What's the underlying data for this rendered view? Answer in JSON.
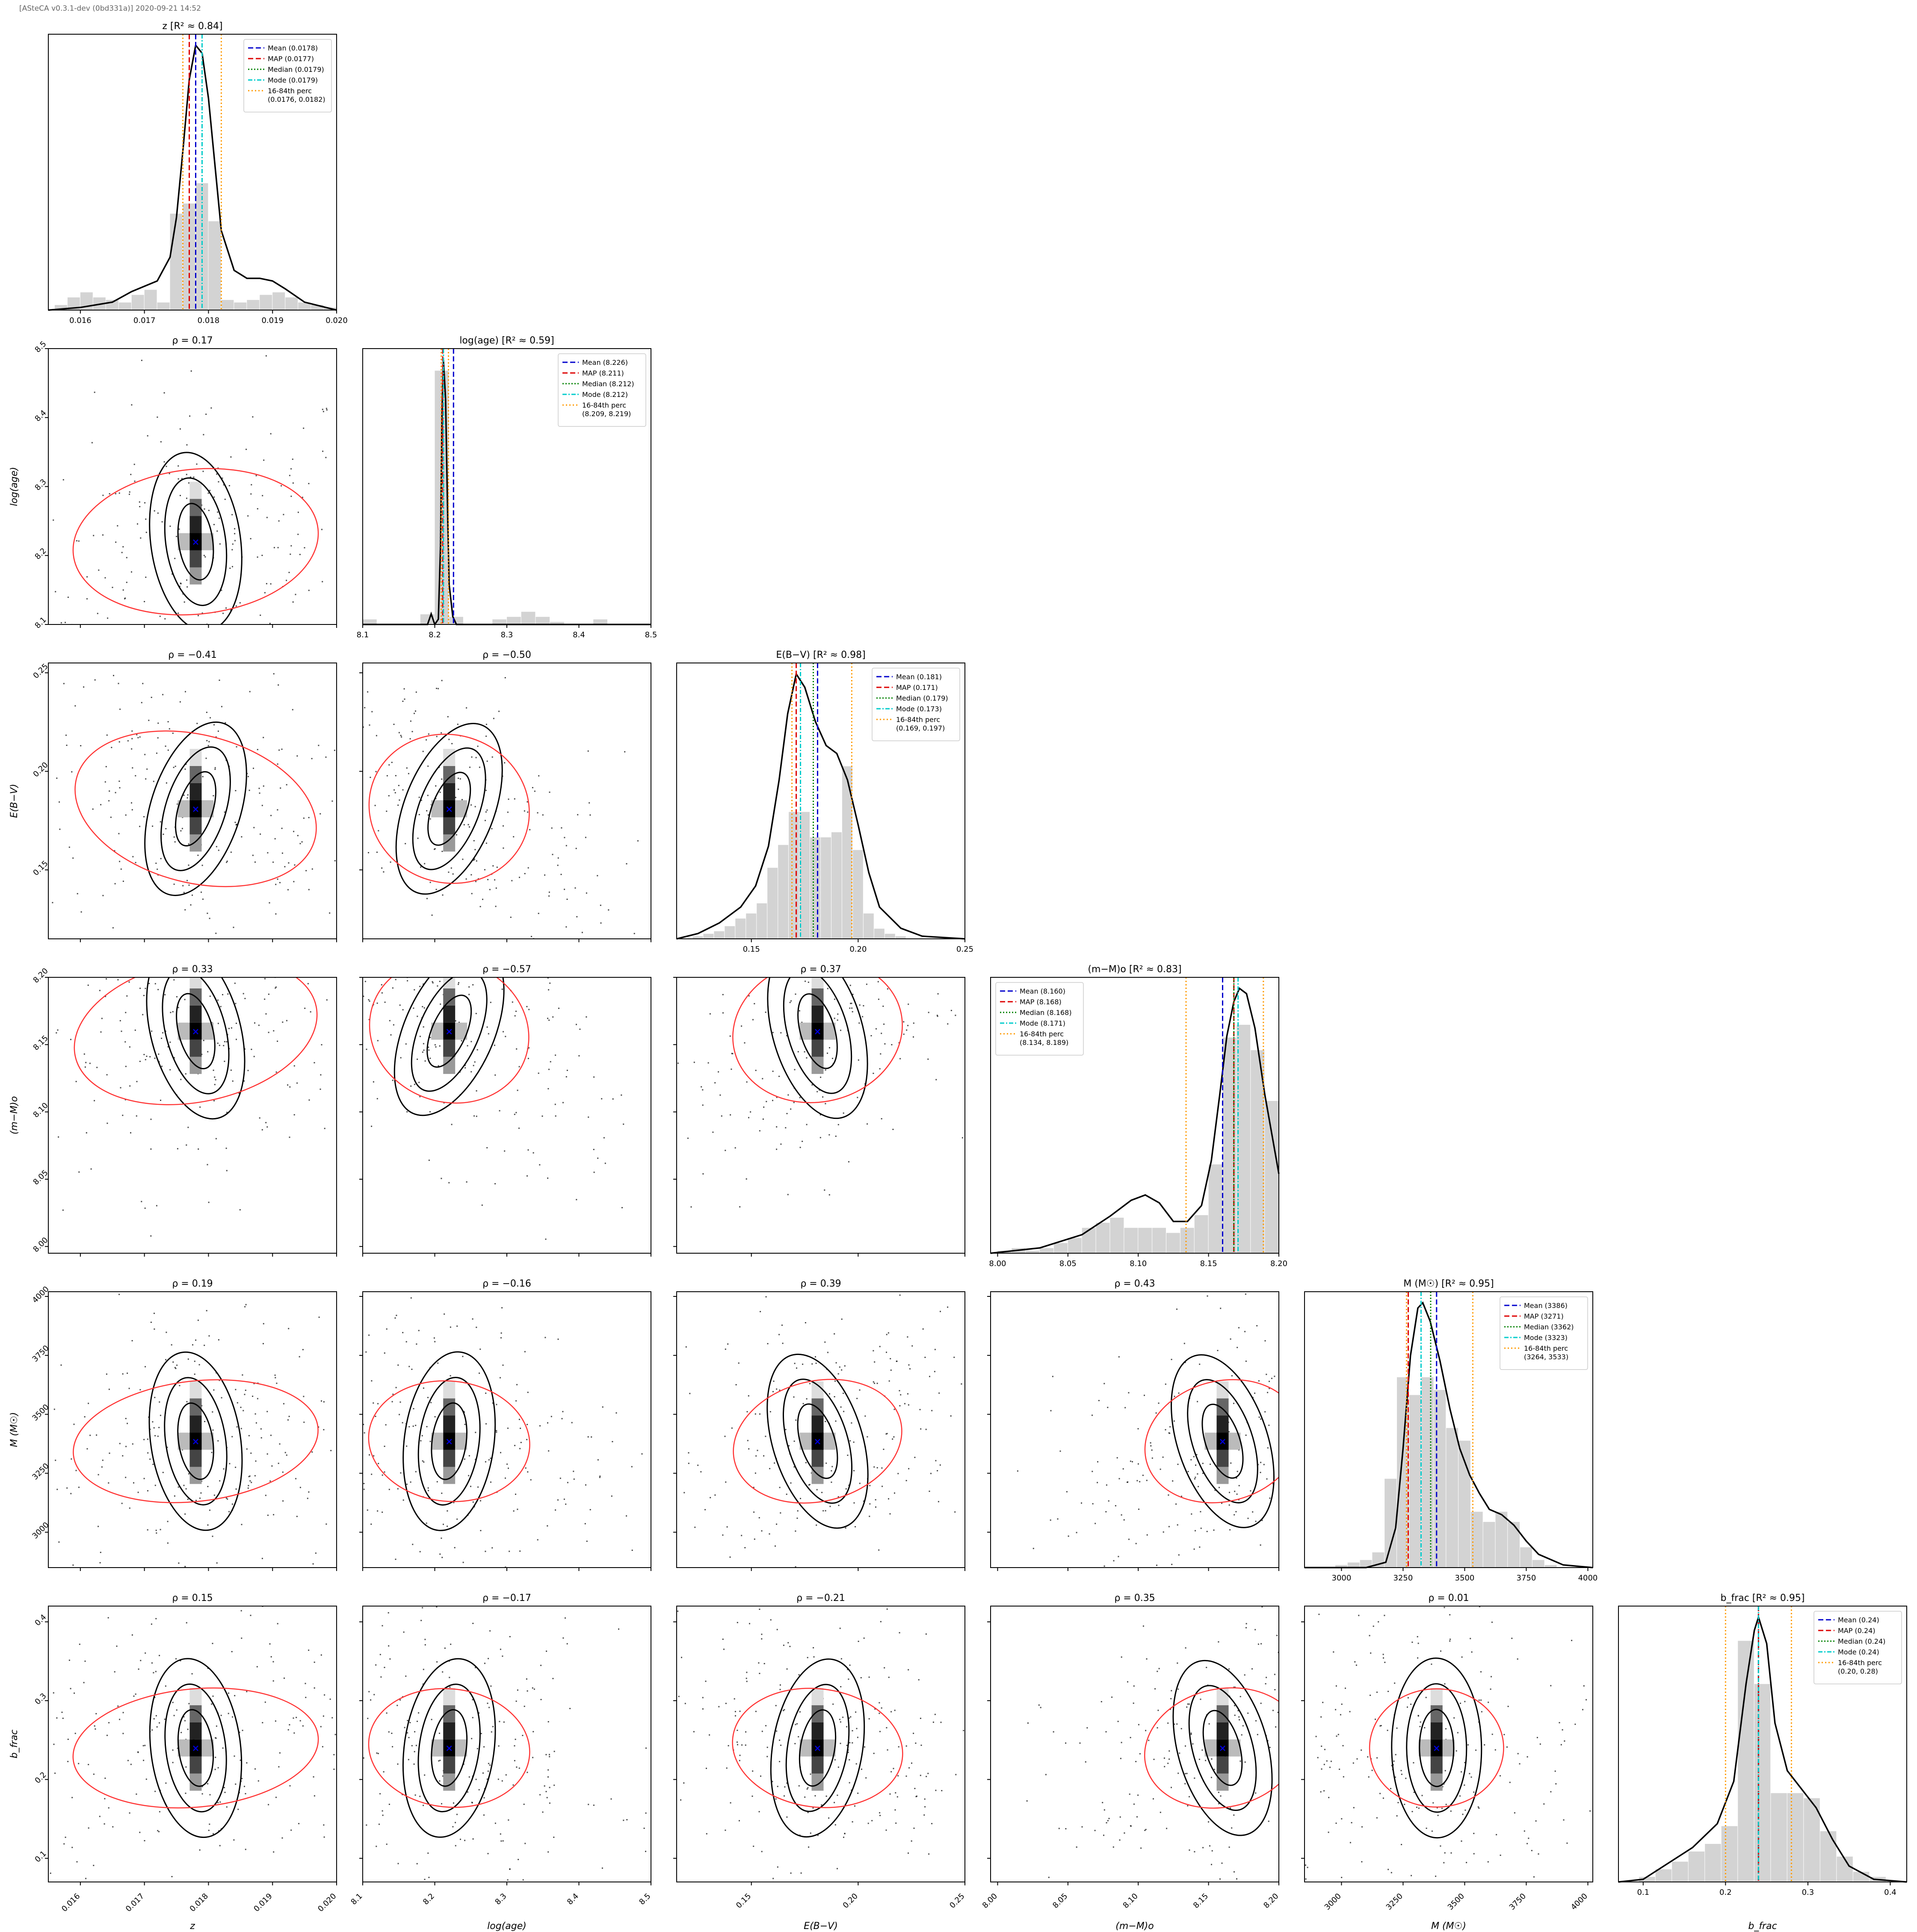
{
  "header": {
    "version_stamp": "[ASteCA v0.3.1-dev (0bd331a)] 2020-09-21 14:52"
  },
  "colors": {
    "mean": "#0000cc",
    "map": "#dd0000",
    "median": "#008000",
    "mode": "#00cccc",
    "perc": "#ff9900",
    "hist": "#d3d3d3",
    "kde": "#000000",
    "ellipse": "#ff3333",
    "scatter": "#111111",
    "marker": "#0000dd"
  },
  "chart_data": {
    "type": "corner",
    "params": [
      {
        "key": "z",
        "label": "z",
        "title": "z [R² ≈ 0.84]",
        "lim": [
          0.0155,
          0.02
        ],
        "ticks": [
          0.016,
          0.017,
          0.018,
          0.019,
          0.02
        ],
        "tick_labels": [
          "0.016",
          "0.017",
          "0.018",
          "0.019",
          "0.020"
        ],
        "best": 0.0178,
        "sigma": 0.0012,
        "hist_centers": [
          0.0157,
          0.0159,
          0.0161,
          0.0163,
          0.0165,
          0.0167,
          0.0169,
          0.0171,
          0.0173,
          0.0175,
          0.0177,
          0.0179,
          0.0181,
          0.0183,
          0.0185,
          0.0187,
          0.0189,
          0.0191,
          0.0193,
          0.0195,
          0.0197,
          0.0199
        ],
        "hist_heights": [
          0.02,
          0.05,
          0.07,
          0.05,
          0.04,
          0.03,
          0.06,
          0.08,
          0.03,
          0.38,
          0.42,
          0.5,
          0.35,
          0.04,
          0.03,
          0.04,
          0.06,
          0.07,
          0.05,
          0.03,
          0.02,
          0.01
        ],
        "kde_x": [
          0.0155,
          0.016,
          0.0165,
          0.0168,
          0.017,
          0.0172,
          0.0174,
          0.0175,
          0.0176,
          0.0177,
          0.0178,
          0.0179,
          0.018,
          0.0181,
          0.0182,
          0.0184,
          0.0186,
          0.0188,
          0.019,
          0.0192,
          0.0195,
          0.02
        ],
        "kde_y": [
          0.0,
          0.01,
          0.03,
          0.07,
          0.09,
          0.11,
          0.2,
          0.35,
          0.6,
          0.87,
          1.0,
          0.97,
          0.8,
          0.55,
          0.3,
          0.15,
          0.12,
          0.12,
          0.11,
          0.08,
          0.03,
          0.0
        ],
        "legend": {
          "position": "upper-right",
          "entries": [
            "Mean (0.0178)",
            "MAP (0.0177)",
            "Median (0.0179)",
            "Mode (0.0179)",
            "16-84th perc",
            "(0.0176, 0.0182)"
          ]
        },
        "lines": {
          "mean": 0.0178,
          "map": 0.0177,
          "median": 0.0179,
          "mode": 0.0179,
          "p16": 0.0176,
          "p84": 0.0182
        }
      },
      {
        "key": "logage",
        "label": "log(age)",
        "title": "log(age) [R² ≈ 0.59]",
        "lim": [
          8.1,
          8.5
        ],
        "ticks": [
          8.1,
          8.2,
          8.3,
          8.4,
          8.5
        ],
        "tick_labels": [
          "8.1",
          "8.2",
          "8.3",
          "8.4",
          "8.5"
        ],
        "best": 8.22,
        "sigma": 0.07,
        "hist_centers": [
          8.11,
          8.13,
          8.15,
          8.17,
          8.19,
          8.21,
          8.23,
          8.25,
          8.27,
          8.29,
          8.31,
          8.33,
          8.35,
          8.37,
          8.39,
          8.41,
          8.43,
          8.45,
          8.47,
          8.49
        ],
        "hist_heights": [
          0.02,
          0.0,
          0.0,
          0.0,
          0.04,
          1.0,
          0.03,
          0.0,
          0.0,
          0.02,
          0.03,
          0.05,
          0.03,
          0.01,
          0.0,
          0.0,
          0.02,
          0.0,
          0.0,
          0.0
        ],
        "kde_x": [
          8.1,
          8.19,
          8.195,
          8.2,
          8.205,
          8.208,
          8.21,
          8.212,
          8.215,
          8.218,
          8.22,
          8.225,
          8.23,
          8.5
        ],
        "kde_y": [
          0.0,
          0.0,
          0.04,
          0.0,
          0.02,
          0.3,
          0.8,
          1.0,
          0.85,
          0.4,
          0.15,
          0.03,
          0.0,
          0.0
        ],
        "legend": {
          "position": "upper-right",
          "entries": [
            "Mean (8.226)",
            "MAP (8.211)",
            "Median (8.212)",
            "Mode (8.212)",
            "16-84th perc",
            "(8.209, 8.219)"
          ]
        },
        "lines": {
          "mean": 8.226,
          "map": 8.211,
          "median": 8.212,
          "mode": 8.212,
          "p16": 8.209,
          "p84": 8.219
        }
      },
      {
        "key": "ebv",
        "label": "E(B−V)",
        "title": "E(B−V) [R² ≈ 0.98]",
        "lim": [
          0.115,
          0.25
        ],
        "ticks": [
          0.15,
          0.2,
          0.25
        ],
        "tick_labels": [
          "0.15",
          "0.20",
          "0.25"
        ],
        "best": 0.181,
        "sigma": 0.025,
        "hist_centers": [
          0.12,
          0.125,
          0.13,
          0.135,
          0.14,
          0.145,
          0.15,
          0.155,
          0.16,
          0.165,
          0.17,
          0.175,
          0.18,
          0.185,
          0.19,
          0.195,
          0.2,
          0.205,
          0.21,
          0.215,
          0.22
        ],
        "hist_heights": [
          0.0,
          0.01,
          0.02,
          0.03,
          0.05,
          0.08,
          0.1,
          0.14,
          0.28,
          0.37,
          0.5,
          0.5,
          0.4,
          0.4,
          0.42,
          0.68,
          0.35,
          0.1,
          0.04,
          0.02,
          0.01
        ],
        "kde_x": [
          0.115,
          0.125,
          0.135,
          0.145,
          0.152,
          0.158,
          0.163,
          0.167,
          0.171,
          0.175,
          0.18,
          0.185,
          0.19,
          0.195,
          0.2,
          0.205,
          0.21,
          0.22,
          0.23,
          0.25
        ],
        "kde_y": [
          0.0,
          0.02,
          0.06,
          0.12,
          0.2,
          0.35,
          0.6,
          0.85,
          1.0,
          0.95,
          0.82,
          0.73,
          0.7,
          0.6,
          0.43,
          0.25,
          0.12,
          0.04,
          0.01,
          0.0
        ],
        "legend": {
          "position": "upper-right",
          "entries": [
            "Mean (0.181)",
            "MAP (0.171)",
            "Median (0.179)",
            "Mode (0.173)",
            "16-84th perc",
            "(0.169, 0.197)"
          ]
        },
        "lines": {
          "mean": 0.181,
          "map": 0.171,
          "median": 0.179,
          "mode": 0.173,
          "p16": 0.169,
          "p84": 0.197
        }
      },
      {
        "key": "dm",
        "label": "(m−M)o",
        "title": "(m−M)o [R² ≈ 0.83]",
        "lim": [
          7.995,
          8.2
        ],
        "ticks": [
          8.0,
          8.05,
          8.1,
          8.15,
          8.2
        ],
        "tick_labels": [
          "8.00",
          "8.05",
          "8.10",
          "8.15",
          "8.20"
        ],
        "best": 8.16,
        "sigma": 0.035,
        "hist_centers": [
          8.005,
          8.015,
          8.025,
          8.035,
          8.045,
          8.055,
          8.065,
          8.075,
          8.085,
          8.095,
          8.105,
          8.115,
          8.125,
          8.135,
          8.145,
          8.155,
          8.165,
          8.175,
          8.185,
          8.195
        ],
        "hist_heights": [
          0.01,
          0.02,
          0.01,
          0.02,
          0.04,
          0.06,
          0.1,
          0.12,
          0.14,
          0.1,
          0.1,
          0.1,
          0.08,
          0.1,
          0.15,
          0.35,
          0.85,
          0.9,
          0.8,
          0.6
        ],
        "kde_x": [
          7.995,
          8.03,
          8.06,
          8.08,
          8.095,
          8.105,
          8.115,
          8.125,
          8.135,
          8.145,
          8.152,
          8.158,
          8.163,
          8.168,
          8.172,
          8.177,
          8.183,
          8.19,
          8.2
        ],
        "kde_y": [
          0.0,
          0.02,
          0.07,
          0.14,
          0.2,
          0.22,
          0.19,
          0.12,
          0.12,
          0.18,
          0.35,
          0.6,
          0.82,
          0.95,
          1.0,
          0.98,
          0.85,
          0.6,
          0.3
        ],
        "legend": {
          "position": "upper-left",
          "entries": [
            "Mean (8.160)",
            "MAP (8.168)",
            "Median (8.168)",
            "Mode (8.171)",
            "16-84th perc",
            "(8.134, 8.189)"
          ]
        },
        "lines": {
          "mean": 8.16,
          "map": 8.168,
          "median": 8.168,
          "mode": 8.171,
          "p16": 8.134,
          "p84": 8.189
        }
      },
      {
        "key": "mass",
        "label": "M (M☉)",
        "title": "M (M☉) [R² ≈ 0.95]",
        "lim": [
          2850,
          4020
        ],
        "ticks": [
          3000,
          3250,
          3500,
          3750,
          4000
        ],
        "tick_labels": [
          "3000",
          "3250",
          "3500",
          "3750",
          "4000"
        ],
        "best": 3386,
        "sigma": 170,
        "hist_centers": [
          2900,
          2950,
          3000,
          3050,
          3100,
          3150,
          3200,
          3250,
          3300,
          3350,
          3400,
          3450,
          3500,
          3550,
          3600,
          3650,
          3700,
          3750,
          3800,
          3850,
          3900
        ],
        "hist_heights": [
          0.0,
          0.0,
          0.01,
          0.02,
          0.03,
          0.06,
          0.35,
          0.75,
          0.68,
          0.75,
          0.7,
          0.55,
          0.5,
          0.22,
          0.18,
          0.22,
          0.18,
          0.08,
          0.03,
          0.01,
          0.0
        ],
        "kde_x": [
          2850,
          3100,
          3180,
          3220,
          3250,
          3280,
          3310,
          3330,
          3360,
          3400,
          3440,
          3480,
          3520,
          3560,
          3600,
          3650,
          3700,
          3750,
          3800,
          3900,
          4020
        ],
        "kde_y": [
          0.0,
          0.0,
          0.02,
          0.15,
          0.45,
          0.8,
          0.98,
          1.0,
          0.93,
          0.78,
          0.6,
          0.45,
          0.35,
          0.28,
          0.22,
          0.2,
          0.16,
          0.1,
          0.05,
          0.01,
          0.0
        ],
        "legend": {
          "position": "upper-right",
          "entries": [
            "Mean (3386)",
            "MAP (3271)",
            "Median (3362)",
            "Mode (3323)",
            "16-84th perc",
            "(3264, 3533)"
          ]
        },
        "lines": {
          "mean": 3386,
          "map": 3271,
          "median": 3362,
          "mode": 3323,
          "p16": 3264,
          "p84": 3533
        }
      },
      {
        "key": "bfr",
        "label": "b_frac",
        "title": "b_frac [R² ≈ 0.95]",
        "lim": [
          0.07,
          0.42
        ],
        "ticks": [
          0.1,
          0.2,
          0.3,
          0.4
        ],
        "tick_labels": [
          "0.1",
          "0.2",
          "0.3",
          "0.4"
        ],
        "best": 0.24,
        "sigma": 0.05,
        "hist_centers": [
          0.085,
          0.105,
          0.125,
          0.145,
          0.165,
          0.185,
          0.205,
          0.225,
          0.245,
          0.265,
          0.285,
          0.305,
          0.325,
          0.345,
          0.365,
          0.385,
          0.405
        ],
        "hist_heights": [
          0.0,
          0.02,
          0.05,
          0.08,
          0.12,
          0.15,
          0.22,
          0.95,
          0.78,
          0.35,
          0.35,
          0.33,
          0.2,
          0.1,
          0.04,
          0.02,
          0.0
        ],
        "kde_x": [
          0.07,
          0.1,
          0.13,
          0.16,
          0.19,
          0.21,
          0.225,
          0.235,
          0.24,
          0.25,
          0.26,
          0.275,
          0.29,
          0.31,
          0.33,
          0.35,
          0.38,
          0.42
        ],
        "kde_y": [
          0.0,
          0.01,
          0.07,
          0.13,
          0.22,
          0.38,
          0.75,
          0.95,
          1.0,
          0.9,
          0.6,
          0.42,
          0.36,
          0.28,
          0.16,
          0.06,
          0.01,
          0.0
        ],
        "legend": {
          "position": "upper-right",
          "entries": [
            "Mean (0.24)",
            "MAP (0.24)",
            "Median (0.24)",
            "Mode (0.24)",
            "16-84th perc",
            "(0.20, 0.28)"
          ]
        },
        "lines": {
          "mean": 0.24,
          "map": 0.24,
          "median": 0.24,
          "mode": 0.24,
          "p16": 0.2,
          "p84": 0.28
        }
      }
    ],
    "yticks_override": {
      "logage": {
        "ticks": [
          8.1,
          8.2,
          8.3,
          8.4,
          8.5
        ],
        "lim": [
          8.1,
          8.5
        ]
      },
      "ebv": {
        "ticks": [
          0.15,
          0.2,
          0.25
        ],
        "lim": [
          0.115,
          0.255
        ]
      },
      "dm": {
        "ticks": [
          8.0,
          8.05,
          8.1,
          8.15,
          8.2
        ],
        "lim": [
          7.995,
          8.2
        ]
      },
      "mass": {
        "ticks": [
          3000,
          3250,
          3500,
          3750,
          4000
        ],
        "lim": [
          2850,
          4020
        ]
      },
      "bfr": {
        "ticks": [
          0.1,
          0.2,
          0.3,
          0.4
        ],
        "lim": [
          0.07,
          0.42
        ]
      }
    },
    "correlations": [
      {
        "row": 1,
        "col": 0,
        "rho": "ρ = 0.17",
        "value": 0.17
      },
      {
        "row": 2,
        "col": 0,
        "rho": "ρ = −0.41",
        "value": -0.41
      },
      {
        "row": 2,
        "col": 1,
        "rho": "ρ = −0.50",
        "value": -0.5
      },
      {
        "row": 3,
        "col": 0,
        "rho": "ρ = 0.33",
        "value": 0.33
      },
      {
        "row": 3,
        "col": 1,
        "rho": "ρ = −0.57",
        "value": -0.57
      },
      {
        "row": 3,
        "col": 2,
        "rho": "ρ = 0.37",
        "value": 0.37
      },
      {
        "row": 4,
        "col": 0,
        "rho": "ρ = 0.19",
        "value": 0.19
      },
      {
        "row": 4,
        "col": 1,
        "rho": "ρ = −0.16",
        "value": -0.16
      },
      {
        "row": 4,
        "col": 2,
        "rho": "ρ = 0.39",
        "value": 0.39
      },
      {
        "row": 4,
        "col": 3,
        "rho": "ρ = 0.43",
        "value": 0.43
      },
      {
        "row": 5,
        "col": 0,
        "rho": "ρ = 0.15",
        "value": 0.15
      },
      {
        "row": 5,
        "col": 1,
        "rho": "ρ = −0.17",
        "value": -0.17
      },
      {
        "row": 5,
        "col": 2,
        "rho": "ρ = −0.21",
        "value": -0.21
      },
      {
        "row": 5,
        "col": 3,
        "rho": "ρ = 0.35",
        "value": 0.35
      },
      {
        "row": 5,
        "col": 4,
        "rho": "ρ = 0.01",
        "value": 0.01
      }
    ]
  }
}
